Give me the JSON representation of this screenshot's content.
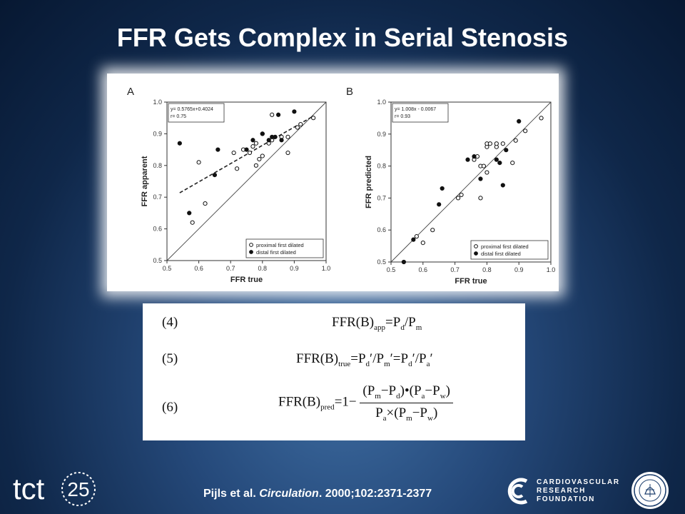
{
  "slide": {
    "title": "FFR Gets Complex in Serial Stenosis",
    "citation_authors": "Pijls et al. ",
    "citation_journal": "Circulation",
    "citation_ref": ". 2000;102:2371-2377"
  },
  "logos": {
    "tct_text": "tct",
    "tct_number": "25",
    "crf_line1": "CARDIOVASCULAR",
    "crf_line2": "RESEARCH",
    "crf_line3": "FOUNDATION"
  },
  "equations": {
    "eq4_num": "(4)",
    "eq5_num": "(5)",
    "eq6_num": "(6)",
    "eq4_lhs": "FFR(B)",
    "eq4_sub": "app",
    "eq4_rhs_a": "=P",
    "eq4_rhs_a_sub": "d",
    "eq4_rhs_b": "/P",
    "eq4_rhs_b_sub": "m",
    "eq5_lhs": "FFR(B)",
    "eq5_sub": "true",
    "eq5_rhs": "=P",
    "eq5_rhs_sub1": "d",
    "eq5_rhs_2": "′/P",
    "eq5_rhs_sub2": "m",
    "eq5_rhs_3": "′=P",
    "eq5_rhs_sub3": "d",
    "eq5_rhs_4": "′/P",
    "eq5_rhs_sub4": "a",
    "eq5_rhs_5": "′",
    "eq6_lhs": "FFR(B)",
    "eq6_sub": "pred",
    "eq6_eq": "=1−",
    "eq6_num_a": "(P",
    "eq6_num_a_sub": "m",
    "eq6_num_b": "−P",
    "eq6_num_b_sub": "d",
    "eq6_num_c": ")•(P",
    "eq6_num_c_sub": "a",
    "eq6_num_d": "−P",
    "eq6_num_d_sub": "w",
    "eq6_num_e": ")",
    "eq6_den_a": "P",
    "eq6_den_a_sub": "a",
    "eq6_den_b": "×(P",
    "eq6_den_b_sub": "m",
    "eq6_den_c": "−P",
    "eq6_den_c_sub": "w",
    "eq6_den_d": ")"
  },
  "chart_data": [
    {
      "type": "scatter",
      "panel_label": "A",
      "xlabel": "FFR true",
      "ylabel": "FFR apparent",
      "xlim": [
        0.5,
        1.0
      ],
      "ylim": [
        0.5,
        1.0
      ],
      "xticks": [
        "0.5",
        "0.6",
        "0.7",
        "0.8",
        "0.9",
        "1.0"
      ],
      "yticks": [
        "0.5",
        "0.6",
        "0.7",
        "0.8",
        "0.9",
        "1.0"
      ],
      "annotation_line1": "y= 0.5765x+0.4024",
      "annotation_line2": "r= 0.75",
      "identity_line": true,
      "regression": {
        "slope": 0.5765,
        "intercept": 0.4024,
        "x_range": [
          0.54,
          0.96
        ],
        "style": "dashed"
      },
      "legend_position": "bottom-right",
      "series": [
        {
          "name": "proximal first dilated",
          "marker": "open",
          "points": [
            [
              0.58,
              0.62
            ],
            [
              0.6,
              0.81
            ],
            [
              0.62,
              0.68
            ],
            [
              0.71,
              0.84
            ],
            [
              0.72,
              0.79
            ],
            [
              0.74,
              0.85
            ],
            [
              0.76,
              0.84
            ],
            [
              0.77,
              0.86
            ],
            [
              0.78,
              0.8
            ],
            [
              0.78,
              0.87
            ],
            [
              0.79,
              0.82
            ],
            [
              0.8,
              0.83
            ],
            [
              0.8,
              0.9
            ],
            [
              0.82,
              0.87
            ],
            [
              0.83,
              0.96
            ],
            [
              0.83,
              0.88
            ],
            [
              0.86,
              0.89
            ],
            [
              0.88,
              0.84
            ],
            [
              0.88,
              0.89
            ],
            [
              0.91,
              0.92
            ],
            [
              0.92,
              0.93
            ],
            [
              0.96,
              0.95
            ]
          ]
        },
        {
          "name": "distal first dilated",
          "marker": "filled",
          "points": [
            [
              0.54,
              0.87
            ],
            [
              0.57,
              0.65
            ],
            [
              0.65,
              0.77
            ],
            [
              0.66,
              0.85
            ],
            [
              0.75,
              0.85
            ],
            [
              0.77,
              0.88
            ],
            [
              0.8,
              0.9
            ],
            [
              0.82,
              0.88
            ],
            [
              0.83,
              0.89
            ],
            [
              0.84,
              0.89
            ],
            [
              0.85,
              0.96
            ],
            [
              0.86,
              0.88
            ],
            [
              0.9,
              0.97
            ]
          ]
        }
      ]
    },
    {
      "type": "scatter",
      "panel_label": "B",
      "xlabel": "FFR true",
      "ylabel": "FFR predicted",
      "xlim": [
        0.5,
        1.0
      ],
      "ylim": [
        0.5,
        1.0
      ],
      "xticks": [
        "0.5",
        "0.6",
        "0.7",
        "0.8",
        "0.9",
        "1.0"
      ],
      "yticks": [
        "0.5",
        "0.6",
        "0.7",
        "0.8",
        "0.9",
        "1.0"
      ],
      "annotation_line1": "y= 1.008x - 0.0067",
      "annotation_line2": "r= 0.93",
      "identity_line": true,
      "legend_position": "bottom-right",
      "series": [
        {
          "name": "proximal first dilated",
          "marker": "open",
          "points": [
            [
              0.58,
              0.58
            ],
            [
              0.6,
              0.56
            ],
            [
              0.63,
              0.6
            ],
            [
              0.71,
              0.7
            ],
            [
              0.72,
              0.71
            ],
            [
              0.76,
              0.82
            ],
            [
              0.77,
              0.83
            ],
            [
              0.78,
              0.7
            ],
            [
              0.78,
              0.8
            ],
            [
              0.79,
              0.8
            ],
            [
              0.8,
              0.78
            ],
            [
              0.8,
              0.86
            ],
            [
              0.8,
              0.87
            ],
            [
              0.81,
              0.87
            ],
            [
              0.83,
              0.86
            ],
            [
              0.83,
              0.87
            ],
            [
              0.85,
              0.87
            ],
            [
              0.88,
              0.81
            ],
            [
              0.89,
              0.88
            ],
            [
              0.92,
              0.91
            ],
            [
              0.97,
              0.95
            ]
          ]
        },
        {
          "name": "distal first dilated",
          "marker": "filled",
          "points": [
            [
              0.54,
              0.5
            ],
            [
              0.57,
              0.57
            ],
            [
              0.65,
              0.68
            ],
            [
              0.66,
              0.73
            ],
            [
              0.74,
              0.82
            ],
            [
              0.76,
              0.83
            ],
            [
              0.78,
              0.76
            ],
            [
              0.83,
              0.82
            ],
            [
              0.84,
              0.81
            ],
            [
              0.85,
              0.74
            ],
            [
              0.86,
              0.85
            ],
            [
              0.9,
              0.94
            ]
          ]
        }
      ]
    }
  ]
}
